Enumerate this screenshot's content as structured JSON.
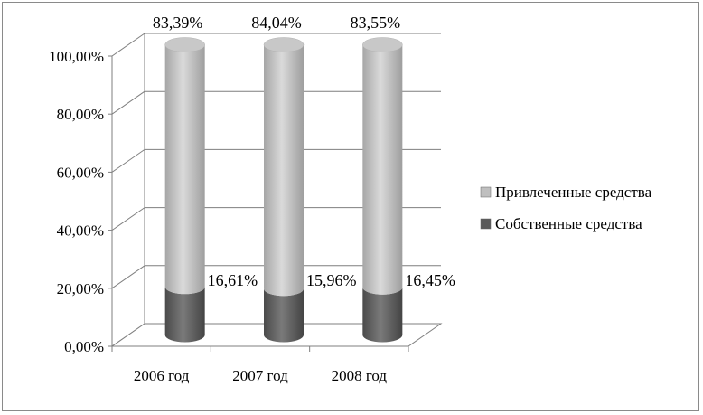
{
  "chart_data": {
    "type": "bar",
    "subtype": "stacked-100-3d-cylinder",
    "categories": [
      "2006 год",
      "2007 год",
      "2008 год"
    ],
    "series": [
      {
        "name": "Собственные средства",
        "values": [
          16.61,
          15.96,
          16.45
        ],
        "labels": [
          "16,61%",
          "15,96%",
          "16,45%"
        ],
        "color": "#595959"
      },
      {
        "name": "Привлеченные средства",
        "values": [
          83.39,
          84.04,
          83.55
        ],
        "labels": [
          "83,39%",
          "84,04%",
          "83,55%"
        ],
        "color": "#bfbfbf"
      }
    ],
    "yticks": [
      "0,00%",
      "20,00%",
      "40,00%",
      "60,00%",
      "80,00%",
      "100,00%"
    ],
    "ylim": [
      0,
      100
    ],
    "grid": true,
    "legend_position": "right"
  }
}
